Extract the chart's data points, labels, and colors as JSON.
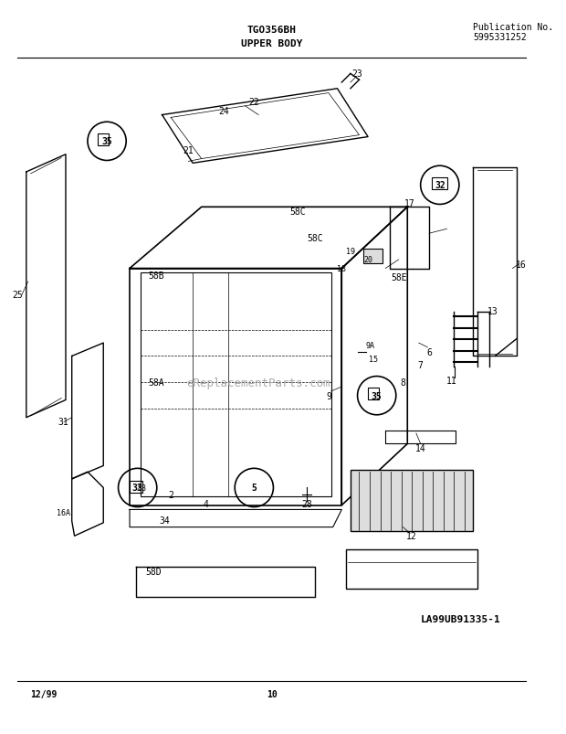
{
  "title_center": "TGO356BH",
  "title_sub": "UPPER BODY",
  "pub_label": "Publication No.",
  "pub_number": "5995331252",
  "footer_left": "12/99",
  "footer_center": "10",
  "watermark": "eReplacementParts.com",
  "diagram_label": "LA99UB91335-1",
  "bg_color": "#ffffff",
  "line_color": "#000000",
  "text_color": "#000000",
  "gray_color": "#888888",
  "fig_width": 6.2,
  "fig_height": 8.04,
  "dpi": 100
}
